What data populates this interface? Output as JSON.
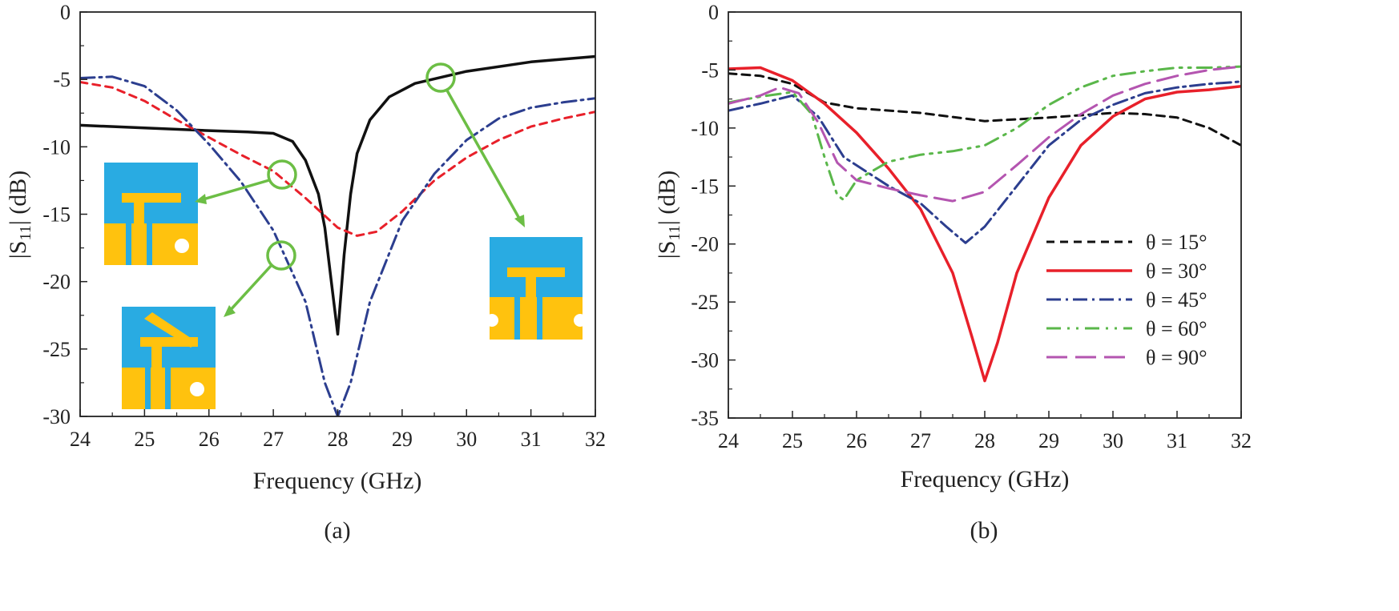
{
  "colors": {
    "black": "#111111",
    "red": "#e8202a",
    "blue": "#2c3e8f",
    "green": "#5ab74a",
    "magenta": "#b455b0",
    "patch_blue": "#29abe2",
    "patch_gold": "#ffc20e"
  },
  "chart_data": [
    {
      "panel": "(a)",
      "type": "line",
      "title": "",
      "xlabel": "Frequency (GHz)",
      "ylabel": "|S11| (dB)",
      "xlim": [
        24,
        32
      ],
      "ylim": [
        -30,
        0
      ],
      "xticks": [
        "24",
        "25",
        "26",
        "27",
        "28",
        "29",
        "30",
        "31",
        "32"
      ],
      "yticks": [
        "0",
        "-5",
        "-10",
        "-15",
        "-20",
        "-25",
        "-30"
      ],
      "grid": false,
      "series": [
        {
          "color": "#111111",
          "dash": "",
          "width": 3.5,
          "points": [
            [
              24,
              -8.4
            ],
            [
              25,
              -8.6
            ],
            [
              26,
              -8.8
            ],
            [
              26.6,
              -8.9
            ],
            [
              27,
              -9.0
            ],
            [
              27.3,
              -9.6
            ],
            [
              27.5,
              -11
            ],
            [
              27.7,
              -13.5
            ],
            [
              27.8,
              -16
            ],
            [
              27.9,
              -20
            ],
            [
              28.0,
              -23.9
            ],
            [
              28.1,
              -18
            ],
            [
              28.2,
              -13.5
            ],
            [
              28.3,
              -10.5
            ],
            [
              28.5,
              -8
            ],
            [
              28.8,
              -6.3
            ],
            [
              29.2,
              -5.3
            ],
            [
              30,
              -4.4
            ],
            [
              31,
              -3.7
            ],
            [
              32,
              -3.3
            ]
          ]
        },
        {
          "color": "#e8202a",
          "dash": "9,7",
          "width": 3,
          "points": [
            [
              24,
              -5.2
            ],
            [
              24.5,
              -5.6
            ],
            [
              25,
              -6.6
            ],
            [
              25.5,
              -8.0
            ],
            [
              26,
              -9.3
            ],
            [
              26.5,
              -10.6
            ],
            [
              27,
              -11.8
            ],
            [
              27.5,
              -13.8
            ],
            [
              28,
              -16.0
            ],
            [
              28.3,
              -16.6
            ],
            [
              28.6,
              -16.3
            ],
            [
              29,
              -14.8
            ],
            [
              29.5,
              -12.5
            ],
            [
              30,
              -10.8
            ],
            [
              30.5,
              -9.5
            ],
            [
              31,
              -8.5
            ],
            [
              31.5,
              -7.9
            ],
            [
              32,
              -7.4
            ]
          ]
        },
        {
          "color": "#2c3e8f",
          "dash": "18,6,3,6",
          "width": 3,
          "points": [
            [
              24,
              -4.9
            ],
            [
              24.5,
              -4.8
            ],
            [
              25,
              -5.5
            ],
            [
              25.5,
              -7.3
            ],
            [
              26,
              -9.8
            ],
            [
              26.5,
              -12.6
            ],
            [
              27,
              -16.2
            ],
            [
              27.5,
              -21.5
            ],
            [
              27.8,
              -27.5
            ],
            [
              28.0,
              -30
            ],
            [
              28.2,
              -27.5
            ],
            [
              28.5,
              -21.5
            ],
            [
              29,
              -15.5
            ],
            [
              29.5,
              -12
            ],
            [
              30,
              -9.5
            ],
            [
              30.5,
              -7.9
            ],
            [
              31,
              -7.1
            ],
            [
              31.5,
              -6.7
            ],
            [
              32,
              -6.4
            ]
          ]
        }
      ]
    },
    {
      "panel": "(b)",
      "type": "line",
      "title": "",
      "xlabel": "Frequency (GHz)",
      "ylabel": "|S11| (dB)",
      "xlim": [
        24,
        32
      ],
      "ylim": [
        -35,
        0
      ],
      "xticks": [
        "24",
        "25",
        "26",
        "27",
        "28",
        "29",
        "30",
        "31",
        "32"
      ],
      "yticks": [
        "0",
        "-5",
        "-10",
        "-15",
        "-20",
        "-25",
        "-30",
        "-35"
      ],
      "grid": false,
      "legend": {
        "position": "lower-right"
      },
      "series": [
        {
          "name": "θ = 15°",
          "color": "#111111",
          "dash": "10,7",
          "width": 3,
          "points": [
            [
              24,
              -5.3
            ],
            [
              24.5,
              -5.5
            ],
            [
              25,
              -6.2
            ],
            [
              25.5,
              -7.8
            ],
            [
              26,
              -8.3
            ],
            [
              27,
              -8.7
            ],
            [
              28,
              -9.4
            ],
            [
              29,
              -9.1
            ],
            [
              30,
              -8.7
            ],
            [
              30.5,
              -8.8
            ],
            [
              31,
              -9.1
            ],
            [
              31.5,
              -10.0
            ],
            [
              32,
              -11.5
            ]
          ]
        },
        {
          "name": "θ = 30°",
          "color": "#e8202a",
          "dash": "",
          "width": 3.5,
          "points": [
            [
              24,
              -4.9
            ],
            [
              24.5,
              -4.8
            ],
            [
              25,
              -5.9
            ],
            [
              25.5,
              -7.9
            ],
            [
              26,
              -10.4
            ],
            [
              26.5,
              -13.5
            ],
            [
              27,
              -17.0
            ],
            [
              27.5,
              -22.5
            ],
            [
              27.8,
              -28
            ],
            [
              28.0,
              -31.8
            ],
            [
              28.2,
              -28.5
            ],
            [
              28.5,
              -22.5
            ],
            [
              29,
              -16.0
            ],
            [
              29.5,
              -11.5
            ],
            [
              30,
              -9.0
            ],
            [
              30.5,
              -7.5
            ],
            [
              31,
              -6.9
            ],
            [
              31.5,
              -6.7
            ],
            [
              32,
              -6.4
            ]
          ]
        },
        {
          "name": "θ = 45°",
          "color": "#2c3e8f",
          "dash": "18,6,3,6",
          "width": 3,
          "points": [
            [
              24,
              -8.5
            ],
            [
              24.5,
              -7.9
            ],
            [
              25,
              -7.2
            ],
            [
              25.4,
              -9.0
            ],
            [
              25.8,
              -12.5
            ],
            [
              26.5,
              -15.0
            ],
            [
              27,
              -16.5
            ],
            [
              27.4,
              -18.5
            ],
            [
              27.7,
              -19.9
            ],
            [
              28,
              -18.5
            ],
            [
              28.5,
              -15.0
            ],
            [
              29,
              -11.5
            ],
            [
              29.5,
              -9.3
            ],
            [
              30,
              -8.0
            ],
            [
              30.5,
              -7.0
            ],
            [
              31,
              -6.5
            ],
            [
              31.5,
              -6.2
            ],
            [
              32,
              -6.0
            ]
          ]
        },
        {
          "name": "θ = 60°",
          "color": "#5ab74a",
          "dash": "18,8,3,8,3,8",
          "width": 3,
          "points": [
            [
              24,
              -7.8
            ],
            [
              24.5,
              -7.3
            ],
            [
              25,
              -6.9
            ],
            [
              25.3,
              -8.8
            ],
            [
              25.5,
              -12.5
            ],
            [
              25.7,
              -15.8
            ],
            [
              25.8,
              -16.2
            ],
            [
              26,
              -14.5
            ],
            [
              26.5,
              -12.9
            ],
            [
              27,
              -12.3
            ],
            [
              27.5,
              -12.0
            ],
            [
              28,
              -11.5
            ],
            [
              28.5,
              -10.0
            ],
            [
              29,
              -8.0
            ],
            [
              29.5,
              -6.5
            ],
            [
              30,
              -5.5
            ],
            [
              30.5,
              -5.1
            ],
            [
              31,
              -4.8
            ],
            [
              31.5,
              -4.8
            ],
            [
              32,
              -4.7
            ]
          ]
        },
        {
          "name": "θ = 90°",
          "color": "#b455b0",
          "dash": "26,10",
          "width": 3,
          "points": [
            [
              24,
              -7.9
            ],
            [
              24.5,
              -7.2
            ],
            [
              24.8,
              -6.5
            ],
            [
              25.1,
              -7.0
            ],
            [
              25.4,
              -9.5
            ],
            [
              25.7,
              -13.0
            ],
            [
              26,
              -14.5
            ],
            [
              26.5,
              -15.2
            ],
            [
              27,
              -15.8
            ],
            [
              27.5,
              -16.3
            ],
            [
              28,
              -15.5
            ],
            [
              28.5,
              -13.2
            ],
            [
              29,
              -10.8
            ],
            [
              29.5,
              -8.8
            ],
            [
              30,
              -7.2
            ],
            [
              30.5,
              -6.2
            ],
            [
              31,
              -5.5
            ],
            [
              31.5,
              -5.0
            ],
            [
              32,
              -4.7
            ]
          ]
        }
      ]
    }
  ]
}
